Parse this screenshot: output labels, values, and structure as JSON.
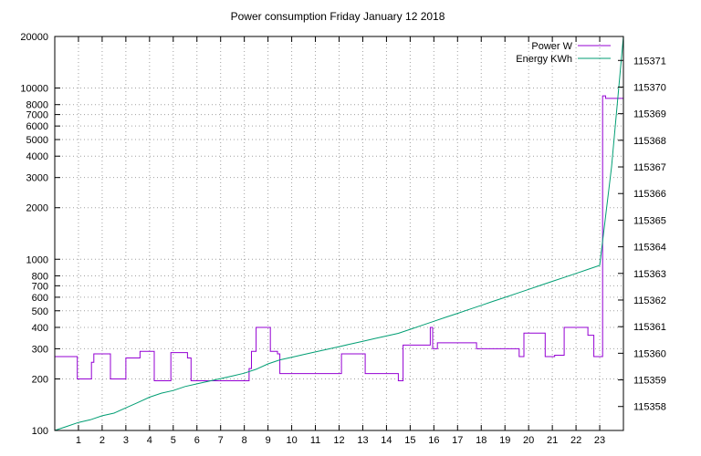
{
  "chart_data": {
    "type": "line",
    "title": "Power consumption Friday January 12 2018",
    "x_axis": {
      "ticks": [
        "1",
        "2",
        "3",
        "4",
        "5",
        "6",
        "7",
        "8",
        "9",
        "10",
        "11",
        "12",
        "13",
        "14",
        "15",
        "16",
        "17",
        "18",
        "19",
        "20",
        "21",
        "22",
        "23"
      ],
      "range": [
        0,
        24
      ],
      "grid": true
    },
    "y_axis_left": {
      "scale": "log",
      "range": [
        100,
        20000
      ],
      "ticks": [
        "100",
        "200",
        "300",
        "400",
        "500",
        "600",
        "700",
        "800",
        "1000",
        "2000",
        "3000",
        "4000",
        "5000",
        "6000",
        "7000",
        "8000",
        "10000",
        "20000"
      ],
      "grid": true
    },
    "y_axis_right": {
      "scale": "linear",
      "range": [
        115357.1,
        115371.9
      ],
      "ticks": [
        "115358",
        "115359",
        "115360",
        "115361",
        "115362",
        "115363",
        "115364",
        "115365",
        "115366",
        "115367",
        "115368",
        "115369",
        "115370",
        "115371"
      ]
    },
    "legend": {
      "position": "top-right"
    },
    "series": [
      {
        "name": "Power W",
        "color": "#9400d3",
        "axis": "left",
        "x": [
          0,
          0.95,
          0.95,
          1.55,
          1.55,
          1.65,
          1.65,
          2.35,
          2.35,
          3.0,
          3.0,
          3.6,
          3.6,
          4.2,
          4.2,
          4.9,
          4.9,
          5.6,
          5.6,
          5.75,
          5.75,
          8.2,
          8.2,
          8.3,
          8.3,
          8.5,
          8.5,
          9.1,
          9.1,
          9.4,
          9.4,
          9.5,
          9.5,
          9.9,
          9.9,
          12.1,
          12.1,
          12.2,
          12.2,
          12.4,
          12.4,
          13.1,
          13.1,
          14.5,
          14.5,
          14.7,
          14.7,
          15.85,
          15.85,
          15.95,
          15.95,
          16.15,
          16.15,
          17.8,
          17.8,
          19.6,
          19.6,
          19.8,
          19.8,
          20.7,
          20.7,
          21.1,
          21.1,
          21.5,
          21.5,
          22.5,
          22.5,
          22.75,
          22.75,
          23.0,
          23.0,
          23.12,
          23.12,
          23.25,
          23.25,
          24.0
        ],
        "values": [
          270,
          270,
          200,
          200,
          250,
          250,
          280,
          280,
          200,
          200,
          265,
          265,
          290,
          290,
          195,
          195,
          285,
          285,
          265,
          265,
          195,
          195,
          230,
          230,
          290,
          290,
          400,
          400,
          290,
          290,
          280,
          280,
          215,
          215,
          215,
          215,
          280,
          280,
          280,
          280,
          280,
          280,
          215,
          215,
          195,
          195,
          315,
          315,
          400,
          400,
          300,
          300,
          325,
          325,
          300,
          300,
          270,
          270,
          370,
          370,
          270,
          270,
          275,
          275,
          400,
          400,
          360,
          360,
          270,
          270,
          270,
          270,
          9000,
          9000,
          8700,
          8700
        ]
      },
      {
        "name": "Energy KWh",
        "color": "#009e73",
        "axis": "right",
        "x": [
          0,
          0.5,
          1.0,
          1.5,
          2.0,
          2.5,
          3.0,
          3.5,
          4.0,
          4.5,
          5.0,
          5.5,
          6.0,
          6.5,
          7.0,
          7.5,
          8.0,
          8.5,
          9.0,
          9.5,
          10.0,
          10.5,
          11.0,
          11.5,
          12.0,
          12.5,
          13.0,
          13.5,
          14.0,
          14.5,
          15.0,
          15.5,
          16.0,
          16.5,
          17.0,
          17.5,
          18.0,
          18.5,
          19.0,
          19.5,
          20.0,
          20.5,
          21.0,
          21.5,
          22.0,
          22.5,
          23.0,
          23.5,
          24.0
        ],
        "values": [
          115357.1,
          115357.25,
          115357.4,
          115357.5,
          115357.65,
          115357.75,
          115357.95,
          115358.15,
          115358.35,
          115358.5,
          115358.6,
          115358.75,
          115358.85,
          115358.95,
          115359.05,
          115359.15,
          115359.25,
          115359.4,
          115359.6,
          115359.75,
          115359.85,
          115359.95,
          115360.05,
          115360.15,
          115360.25,
          115360.35,
          115360.45,
          115360.55,
          115360.65,
          115360.75,
          115360.9,
          115361.05,
          115361.2,
          115361.35,
          115361.5,
          115361.65,
          115361.8,
          115361.95,
          115362.1,
          115362.25,
          115362.4,
          115362.55,
          115362.7,
          115362.85,
          115363.0,
          115363.15,
          115363.3,
          115367.0,
          115371.9
        ]
      }
    ]
  }
}
